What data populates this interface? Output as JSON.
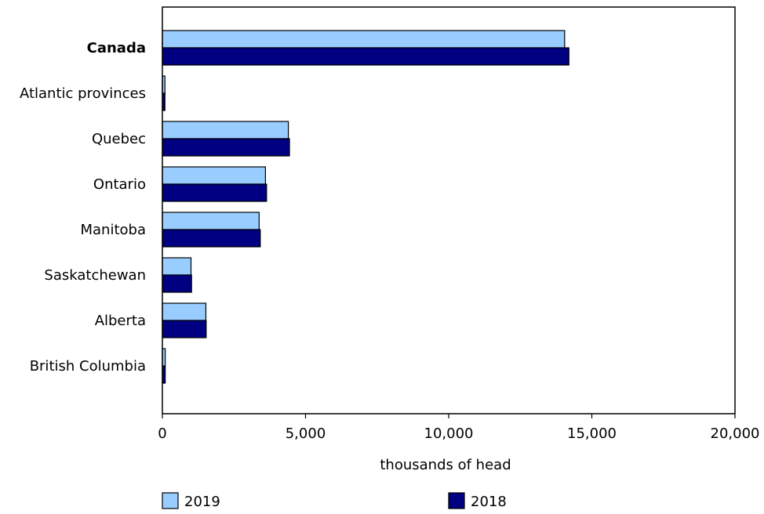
{
  "chart_data": {
    "type": "bar",
    "orientation": "horizontal",
    "title": "",
    "xlabel": "thousands of head",
    "ylabel": "",
    "xlim": [
      0,
      20000
    ],
    "x_ticks": [
      0,
      5000,
      10000,
      15000,
      20000
    ],
    "x_tick_labels": [
      "0",
      "5,000",
      "10,000",
      "15,000",
      "20,000"
    ],
    "grid": false,
    "legend_position": "bottom",
    "categories": [
      "Canada",
      "Atlantic provinces",
      "Quebec",
      "Ontario",
      "Manitoba",
      "Saskatchewan",
      "Alberta",
      "British Columbia"
    ],
    "bold_categories": [
      "Canada"
    ],
    "series": [
      {
        "name": "2019",
        "color": "#99ccff",
        "values": [
          14050,
          90,
          4400,
          3600,
          3380,
          1000,
          1520,
          100
        ]
      },
      {
        "name": "2018",
        "color": "#000080",
        "values": [
          14200,
          90,
          4440,
          3640,
          3420,
          1020,
          1530,
          100
        ]
      }
    ]
  }
}
